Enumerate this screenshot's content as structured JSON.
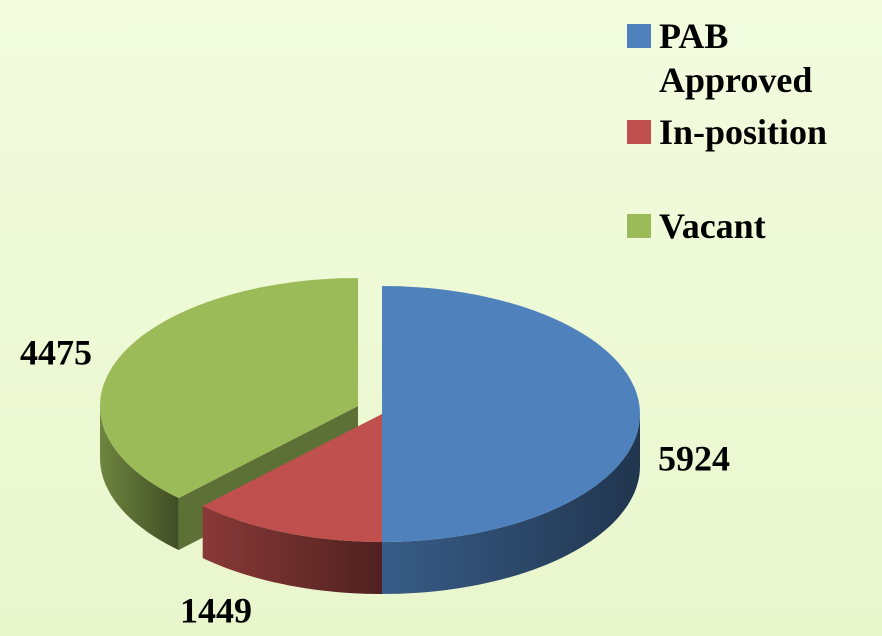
{
  "chart_data": {
    "type": "pie3d",
    "categories": [
      "PAB Approved",
      "In-position",
      "Vacant"
    ],
    "values": [
      5924,
      1449,
      4475
    ],
    "colors": [
      "#4f81bd",
      "#c0504d",
      "#9bbb59"
    ],
    "legend": "right"
  }
}
